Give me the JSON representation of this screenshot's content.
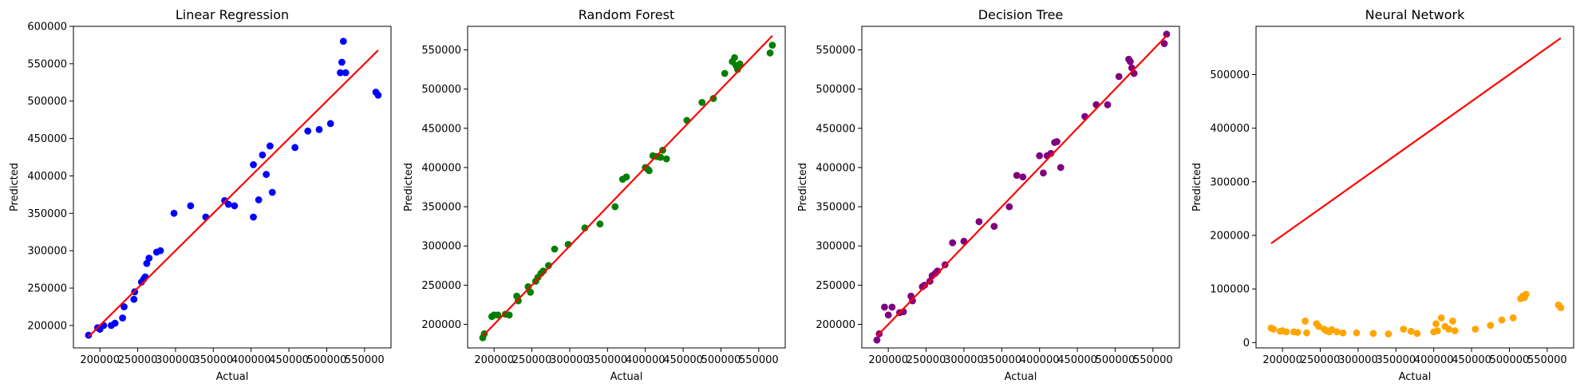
{
  "chart_data": [
    {
      "type": "scatter",
      "title": "Linear Regression",
      "xlabel": "Actual",
      "ylabel": "Predicted",
      "xlim": [
        165000,
        585000
      ],
      "ylim": [
        170000,
        600000
      ],
      "xticks": [
        200000,
        250000,
        300000,
        350000,
        400000,
        450000,
        500000,
        550000
      ],
      "xtick_labels": [
        "200000",
        "250000",
        "300000",
        "350000",
        "400000",
        "450000",
        "500000",
        "550000"
      ],
      "yticks": [
        200000,
        250000,
        300000,
        350000,
        400000,
        450000,
        500000,
        550000,
        600000
      ],
      "ytick_labels": [
        "200000",
        "250000",
        "300000",
        "350000",
        "400000",
        "450000",
        "500000",
        "550000",
        "600000"
      ],
      "point_color": "#0000ff",
      "line_color": "#ff0000",
      "fit_line": {
        "x": [
          185000,
          568000
        ],
        "y": [
          185000,
          568000
        ]
      },
      "series": [
        {
          "x": [
            185000,
            197000,
            200000,
            205000,
            215000,
            220000,
            230000,
            232000,
            245000,
            246000,
            255000,
            258000,
            260000,
            262000,
            265000,
            275000,
            280000,
            298000,
            320000,
            340000,
            365000,
            370000,
            378000,
            403000,
            403000,
            410000,
            415000,
            420000,
            425000,
            428000,
            458000,
            475000,
            490000,
            505000,
            518000,
            520000,
            522000,
            525000,
            565000,
            568000
          ],
          "y": [
            187000,
            197000,
            195000,
            200000,
            200000,
            203000,
            210000,
            225000,
            235000,
            245000,
            258000,
            262000,
            265000,
            283000,
            290000,
            298000,
            300000,
            350000,
            360000,
            345000,
            367000,
            362000,
            360000,
            345000,
            415000,
            368000,
            428000,
            402000,
            440000,
            378000,
            438000,
            460000,
            462000,
            470000,
            538000,
            552000,
            580000,
            538000,
            512000,
            508000
          ]
        }
      ]
    },
    {
      "type": "scatter",
      "title": "Random Forest",
      "xlabel": "Actual",
      "ylabel": "Predicted",
      "xlim": [
        165000,
        585000
      ],
      "ylim": [
        170000,
        580000
      ],
      "xticks": [
        200000,
        250000,
        300000,
        350000,
        400000,
        450000,
        500000,
        550000
      ],
      "xtick_labels": [
        "200000",
        "250000",
        "300000",
        "350000",
        "400000",
        "450000",
        "500000",
        "550000"
      ],
      "yticks": [
        200000,
        250000,
        300000,
        350000,
        400000,
        450000,
        500000,
        550000
      ],
      "ytick_labels": [
        "200000",
        "250000",
        "300000",
        "350000",
        "400000",
        "450000",
        "500000",
        "550000"
      ],
      "point_color": "#008000",
      "line_color": "#ff0000",
      "fit_line": {
        "x": [
          185000,
          568000
        ],
        "y": [
          185000,
          568000
        ]
      },
      "series": [
        {
          "x": [
            185000,
            187000,
            197000,
            200000,
            205000,
            215000,
            220000,
            230000,
            232000,
            245000,
            248000,
            255000,
            258000,
            262000,
            265000,
            272000,
            280000,
            298000,
            320000,
            340000,
            360000,
            370000,
            375000,
            400000,
            403000,
            405000,
            410000,
            415000,
            420000,
            423000,
            428000,
            455000,
            475000,
            490000,
            505000,
            515000,
            518000,
            520000,
            522000,
            525000,
            565000,
            568000
          ],
          "y": [
            183000,
            188000,
            210000,
            212000,
            212000,
            213000,
            212000,
            236000,
            230000,
            248000,
            241000,
            255000,
            260000,
            265000,
            268000,
            275000,
            296000,
            302000,
            323000,
            328000,
            350000,
            385000,
            388000,
            400000,
            398000,
            396000,
            415000,
            414000,
            413000,
            422000,
            411000,
            460000,
            483000,
            488000,
            520000,
            535000,
            540000,
            530000,
            525000,
            532000,
            546000,
            556000
          ]
        }
      ]
    },
    {
      "type": "scatter",
      "title": "Decision Tree",
      "xlabel": "Actual",
      "ylabel": "Predicted",
      "xlim": [
        165000,
        585000
      ],
      "ylim": [
        170000,
        580000
      ],
      "xticks": [
        200000,
        250000,
        300000,
        350000,
        400000,
        450000,
        500000,
        550000
      ],
      "xtick_labels": [
        "200000",
        "250000",
        "300000",
        "350000",
        "400000",
        "450000",
        "500000",
        "550000"
      ],
      "yticks": [
        200000,
        250000,
        300000,
        350000,
        400000,
        450000,
        500000,
        550000
      ],
      "ytick_labels": [
        "200000",
        "250000",
        "300000",
        "350000",
        "400000",
        "450000",
        "500000",
        "550000"
      ],
      "point_color": "#800080",
      "line_color": "#ff0000",
      "fit_line": {
        "x": [
          185000,
          568000
        ],
        "y": [
          185000,
          568000
        ]
      },
      "series": [
        {
          "x": [
            185000,
            188000,
            195000,
            200000,
            205000,
            215000,
            220000,
            230000,
            232000,
            245000,
            248000,
            255000,
            258000,
            262000,
            265000,
            275000,
            285000,
            300000,
            320000,
            340000,
            360000,
            370000,
            378000,
            400000,
            405000,
            410000,
            415000,
            420000,
            423000,
            428000,
            460000,
            475000,
            490000,
            505000,
            518000,
            520000,
            522000,
            525000,
            565000,
            568000
          ],
          "y": [
            180000,
            188000,
            222000,
            212000,
            222000,
            215000,
            216000,
            236000,
            230000,
            248000,
            250000,
            255000,
            262000,
            265000,
            268000,
            276000,
            304000,
            306000,
            331000,
            325000,
            350000,
            390000,
            388000,
            415000,
            393000,
            415000,
            418000,
            432000,
            433000,
            400000,
            465000,
            480000,
            480000,
            516000,
            538000,
            535000,
            527000,
            520000,
            558000,
            570000
          ]
        }
      ]
    },
    {
      "type": "scatter",
      "title": "Neural Network",
      "xlabel": "Actual",
      "ylabel": "Predicted",
      "xlim": [
        165000,
        585000
      ],
      "ylim": [
        -10000,
        590000
      ],
      "xticks": [
        200000,
        250000,
        300000,
        350000,
        400000,
        450000,
        500000,
        550000
      ],
      "xtick_labels": [
        "200000",
        "250000",
        "300000",
        "350000",
        "400000",
        "450000",
        "500000",
        "550000"
      ],
      "yticks": [
        0,
        100000,
        200000,
        300000,
        400000,
        500000
      ],
      "ytick_labels": [
        "0",
        "100000",
        "200000",
        "300000",
        "400000",
        "500000"
      ],
      "point_color": "#ffa500",
      "line_color": "#ff0000",
      "fit_line": {
        "x": [
          185000,
          568000
        ],
        "y": [
          185000,
          568000
        ]
      },
      "series": [
        {
          "x": [
            185000,
            188000,
            197000,
            200000,
            205000,
            215000,
            220000,
            230000,
            232000,
            245000,
            248000,
            255000,
            258000,
            262000,
            265000,
            272000,
            280000,
            298000,
            320000,
            340000,
            360000,
            370000,
            378000,
            400000,
            403000,
            405000,
            410000,
            415000,
            420000,
            425000,
            428000,
            455000,
            475000,
            490000,
            505000,
            515000,
            518000,
            520000,
            522000,
            565000,
            568000
          ],
          "y": [
            27000,
            25000,
            21000,
            22000,
            20000,
            20000,
            19000,
            40000,
            18000,
            35000,
            30000,
            25000,
            22000,
            20000,
            24000,
            20000,
            18000,
            18000,
            17000,
            16000,
            25000,
            21000,
            17000,
            20000,
            35000,
            22000,
            46000,
            30000,
            25000,
            40000,
            22000,
            25000,
            32000,
            42000,
            46000,
            82000,
            87000,
            84000,
            90000,
            70000,
            65000
          ]
        }
      ]
    }
  ]
}
